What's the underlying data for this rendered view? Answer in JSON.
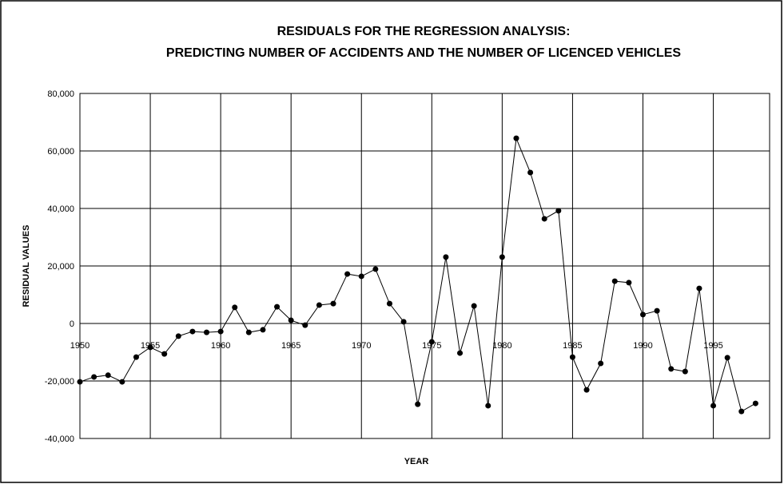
{
  "chart_data": {
    "type": "line",
    "title": "RESIDUALS FOR THE REGRESSION ANALYSIS:",
    "subtitle": "PREDICTING NUMBER OF ACCIDENTS AND THE NUMBER OF LICENCED VEHICLES",
    "x_label": "YEAR",
    "y_label": "RESIDUAL VALUES",
    "x": [
      1950,
      1951,
      1952,
      1953,
      1954,
      1955,
      1956,
      1957,
      1958,
      1959,
      1960,
      1961,
      1962,
      1963,
      1964,
      1965,
      1966,
      1967,
      1968,
      1969,
      1970,
      1971,
      1972,
      1973,
      1974,
      1975,
      1976,
      1977,
      1978,
      1979,
      1980,
      1981,
      1982,
      1983,
      1984,
      1985,
      1986,
      1987,
      1988,
      1989,
      1990,
      1991,
      1992,
      1993,
      1994,
      1995,
      1996,
      1997,
      1998
    ],
    "series": [
      {
        "name": "Residuals",
        "color": "#000000",
        "values": [
          -20300,
          -18600,
          -18000,
          -20300,
          -11700,
          -8300,
          -10600,
          -4400,
          -2800,
          -3100,
          -2800,
          5600,
          -3100,
          -2200,
          5800,
          1100,
          -600,
          6400,
          6900,
          17200,
          16400,
          18900,
          6900,
          600,
          -28100,
          -6400,
          23100,
          -10300,
          6100,
          -28600,
          23100,
          64400,
          52500,
          36400,
          39200,
          -11700,
          -23100,
          -13900,
          14700,
          14200,
          3100,
          4400,
          -15800,
          -16700,
          12200,
          -28600,
          -11900,
          -30600,
          -27800
        ]
      }
    ],
    "xlim": [
      1950,
      1999
    ],
    "xticks": [
      1950,
      1955,
      1960,
      1965,
      1970,
      1975,
      1980,
      1985,
      1990,
      1995
    ],
    "ylim": [
      -40000,
      80000
    ],
    "yticks": [
      {
        "value": -40000,
        "label": "-40,000"
      },
      {
        "value": -20000,
        "label": "-20,000"
      },
      0,
      {
        "value": 20000,
        "label": "20,000"
      },
      {
        "value": 40000,
        "label": "40,000"
      },
      {
        "value": 60000,
        "label": "60,000"
      },
      {
        "value": 80000,
        "label": "80,000"
      }
    ],
    "grid": true
  }
}
